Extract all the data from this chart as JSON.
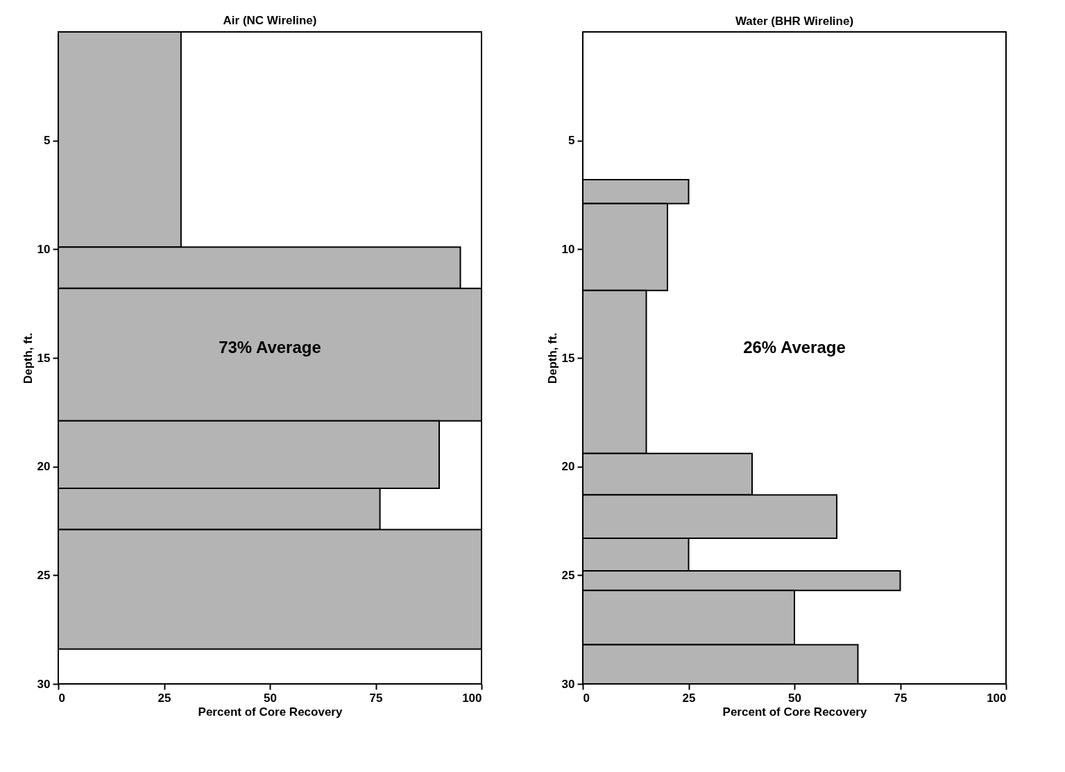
{
  "chart_data": [
    {
      "type": "histogram",
      "orientation": "horizontal",
      "title": "Air (NC Wireline)",
      "xlabel": "Percent of Core Recovery",
      "ylabel": "Depth, ft.",
      "bins": [
        0,
        9.9,
        11.8,
        17.9,
        21.0,
        22.9,
        28.4
      ],
      "values": [
        29,
        95,
        100,
        90,
        76,
        100
      ],
      "color": "#b4b4b4",
      "xlim": [
        0,
        100
      ],
      "xticks": [
        0,
        25,
        50,
        75,
        100
      ],
      "ylim": [
        30,
        0
      ],
      "yticks": [
        5,
        10,
        15,
        20,
        25,
        30
      ],
      "grid": false,
      "annotations": [
        "73% Average"
      ]
    },
    {
      "type": "histogram",
      "orientation": "horizontal",
      "title": "Water (BHR Wireline)",
      "xlabel": "Percent of Core Recovery",
      "ylabel": "Depth, ft.",
      "bins": [
        6.8,
        7.9,
        11.9,
        19.4,
        21.3,
        23.3,
        24.8,
        25.7,
        28.2,
        30
      ],
      "values": [
        25,
        20,
        15,
        40,
        60,
        25,
        75,
        50,
        65
      ],
      "color": "#b4b4b4",
      "xlim": [
        0,
        100
      ],
      "xticks": [
        0,
        25,
        50,
        75,
        100
      ],
      "ylim": [
        30,
        0
      ],
      "yticks": [
        5,
        10,
        15,
        20,
        25,
        30
      ],
      "grid": false,
      "annotations": [
        "26% Average"
      ]
    }
  ]
}
